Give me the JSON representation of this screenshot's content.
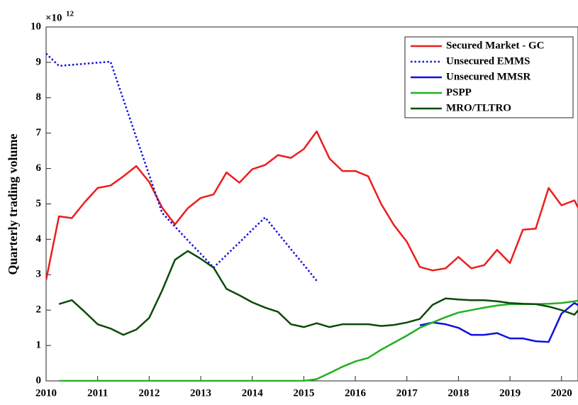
{
  "chart_data": {
    "type": "line",
    "ylabel": "Quarterly trading volume",
    "y_exponent": {
      "base": "×10",
      "power": "12"
    },
    "x": [
      2010,
      2010.25,
      2010.5,
      2010.75,
      2011,
      2011.25,
      2011.5,
      2011.75,
      2012,
      2012.25,
      2012.5,
      2012.75,
      2013,
      2013.25,
      2013.5,
      2013.75,
      2014,
      2014.25,
      2014.5,
      2014.75,
      2015,
      2015.25,
      2015.5,
      2015.75,
      2016,
      2016.25,
      2016.5,
      2016.75,
      2017,
      2017.25,
      2017.5,
      2017.75,
      2018,
      2018.25,
      2018.5,
      2018.75,
      2019,
      2019.25,
      2019.5,
      2019.75,
      2020,
      2020.25,
      2020.5
    ],
    "series": [
      {
        "name": "Secured Market - GC",
        "color": "#ee1c1c",
        "dash": "solid",
        "values": [
          2.85,
          4.65,
          4.6,
          5.05,
          5.45,
          5.52,
          5.78,
          6.07,
          5.62,
          4.9,
          4.42,
          4.88,
          5.17,
          5.27,
          5.89,
          5.6,
          5.98,
          6.1,
          6.38,
          6.3,
          6.55,
          7.05,
          6.28,
          5.93,
          5.93,
          5.78,
          5.0,
          4.4,
          3.93,
          3.22,
          3.12,
          3.18,
          3.5,
          3.18,
          3.27,
          3.7,
          3.33,
          4.27,
          4.3,
          5.45,
          4.96,
          5.1,
          4.4
        ]
      },
      {
        "name": "Unsecured EMMS",
        "color": "#1010e0",
        "dash": "dotted",
        "values": [
          9.25,
          8.9,
          8.93,
          8.96,
          8.99,
          9.02,
          7.95,
          6.88,
          5.82,
          4.75,
          4.36,
          3.97,
          3.59,
          3.2,
          3.56,
          3.91,
          4.27,
          4.62,
          4.17,
          3.72,
          3.28,
          2.83,
          null,
          null,
          null,
          null,
          null,
          null,
          null,
          null,
          null,
          null,
          null,
          null,
          null,
          null,
          null,
          null,
          null,
          null,
          null,
          null,
          null
        ]
      },
      {
        "name": "Unsecured MMSR",
        "color": "#1010e0",
        "dash": "solid",
        "values": [
          null,
          null,
          null,
          null,
          null,
          null,
          null,
          null,
          null,
          null,
          null,
          null,
          null,
          null,
          null,
          null,
          null,
          null,
          null,
          null,
          null,
          null,
          null,
          null,
          null,
          null,
          null,
          null,
          null,
          1.57,
          1.65,
          1.6,
          1.5,
          1.3,
          1.3,
          1.35,
          1.2,
          1.2,
          1.12,
          1.1,
          1.9,
          2.2,
          2.0
        ]
      },
      {
        "name": "PSPP",
        "color": "#22b022",
        "dash": "solid",
        "values": [
          null,
          0,
          0,
          0,
          0,
          0,
          0,
          0,
          0,
          0,
          0,
          0,
          0,
          0,
          0,
          0,
          0,
          0,
          0,
          0,
          0,
          0.05,
          0.22,
          0.4,
          0.55,
          0.65,
          0.88,
          1.08,
          1.28,
          1.5,
          1.65,
          1.8,
          1.93,
          2.0,
          2.07,
          2.13,
          2.17,
          2.17,
          2.17,
          2.18,
          2.2,
          2.25,
          2.32
        ]
      },
      {
        "name": "MRO/TLTRO",
        "color": "#0b4a0b",
        "dash": "solid",
        "values": [
          null,
          2.17,
          2.28,
          1.95,
          1.6,
          1.48,
          1.3,
          1.45,
          1.78,
          2.55,
          3.42,
          3.67,
          3.45,
          3.2,
          2.6,
          2.42,
          2.22,
          2.07,
          1.95,
          1.6,
          1.52,
          1.63,
          1.52,
          1.6,
          1.6,
          1.6,
          1.55,
          1.58,
          1.65,
          1.75,
          2.15,
          2.33,
          2.3,
          2.28,
          2.28,
          2.25,
          2.2,
          2.18,
          2.17,
          2.1,
          2.0,
          1.87,
          2.3
        ]
      }
    ],
    "xlim": [
      2010,
      2020.32
    ],
    "xticks": [
      2010,
      2011,
      2012,
      2013,
      2014,
      2015,
      2016,
      2017,
      2018,
      2019,
      2020
    ],
    "ylim": [
      0,
      10
    ],
    "yticks": [
      0,
      1,
      2,
      3,
      4,
      5,
      6,
      7,
      8,
      9,
      10
    ],
    "legend": "upper right"
  }
}
